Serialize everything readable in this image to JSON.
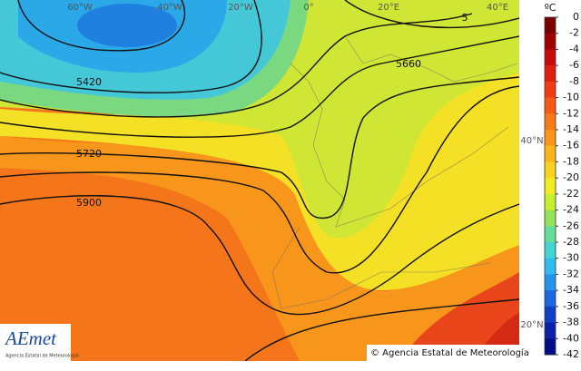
{
  "map": {
    "longitude_labels": [
      "60°W",
      "40°W",
      "20°W",
      "0°",
      "20°E",
      "40°E"
    ],
    "latitude_labels": [
      "40°N",
      "20°N"
    ],
    "contour_labels": [
      "5420",
      "5720",
      "5900",
      "5660",
      "5"
    ],
    "colorbar": {
      "unit": "ºC",
      "ticks": [
        0,
        -2,
        -4,
        -6,
        -8,
        -10,
        -12,
        -14,
        -16,
        -18,
        -20,
        -22,
        -24,
        -26,
        -28,
        -30,
        -32,
        -34,
        -36,
        -38,
        -40,
        -42
      ],
      "colors": [
        "#7a0000",
        "#a00000",
        "#c80a0a",
        "#e0200f",
        "#f03c12",
        "#f65a14",
        "#f97816",
        "#fb9618",
        "#fcb41a",
        "#f8d21e",
        "#f0ee22",
        "#c8ee30",
        "#96e25a",
        "#64dc9a",
        "#44d4d2",
        "#30bcf0",
        "#2494ee",
        "#1c68e0",
        "#1040c8",
        "#0a20a8",
        "#000c88"
      ]
    },
    "logo": {
      "name": "AEmet",
      "subtitle": "Agencia Estatal de Meteorología"
    },
    "copyright": "© Agencia Estatal de Meteorología"
  }
}
